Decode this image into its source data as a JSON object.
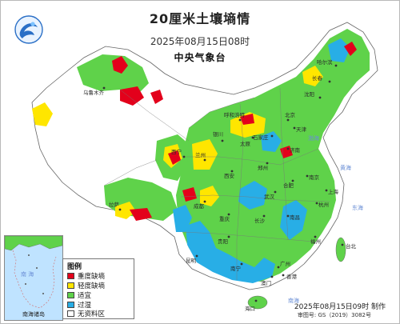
{
  "header": {
    "title": "20厘米土壤墒情",
    "datetime": "2025年08月15日08时",
    "agency": "中央气象台"
  },
  "legend": {
    "title": "图例",
    "items": [
      {
        "label": "重度缺墒",
        "color": "#e3001b"
      },
      {
        "label": "轻度缺墒",
        "color": "#ffe600"
      },
      {
        "label": "适宜",
        "color": "#5fd24a"
      },
      {
        "label": "过湿",
        "color": "#28aee6"
      },
      {
        "label": "无资料区",
        "color": "#ffffff"
      }
    ]
  },
  "inset": {
    "caption": "南海诸岛",
    "sea_label": "南 海"
  },
  "footer": {
    "produced": "2025年08月15日09时 制作",
    "approval": "审图号: GS（2019）3082号"
  },
  "cities": [
    "哈尔滨",
    "长春",
    "沈阳",
    "北京",
    "天津",
    "石家庄",
    "太原",
    "济南",
    "郑州",
    "西安",
    "兰州",
    "西宁",
    "银川",
    "呼和浩特",
    "南京",
    "合肥",
    "上海",
    "杭州",
    "武汉",
    "长沙",
    "南昌",
    "福州",
    "台北",
    "广州",
    "南宁",
    "海口",
    "贵阳",
    "昆明",
    "成都",
    "重庆",
    "拉萨",
    "乌鲁木齐",
    "香港",
    "澳门"
  ],
  "seas": [
    "渤海",
    "黄海",
    "东海",
    "南海"
  ]
}
